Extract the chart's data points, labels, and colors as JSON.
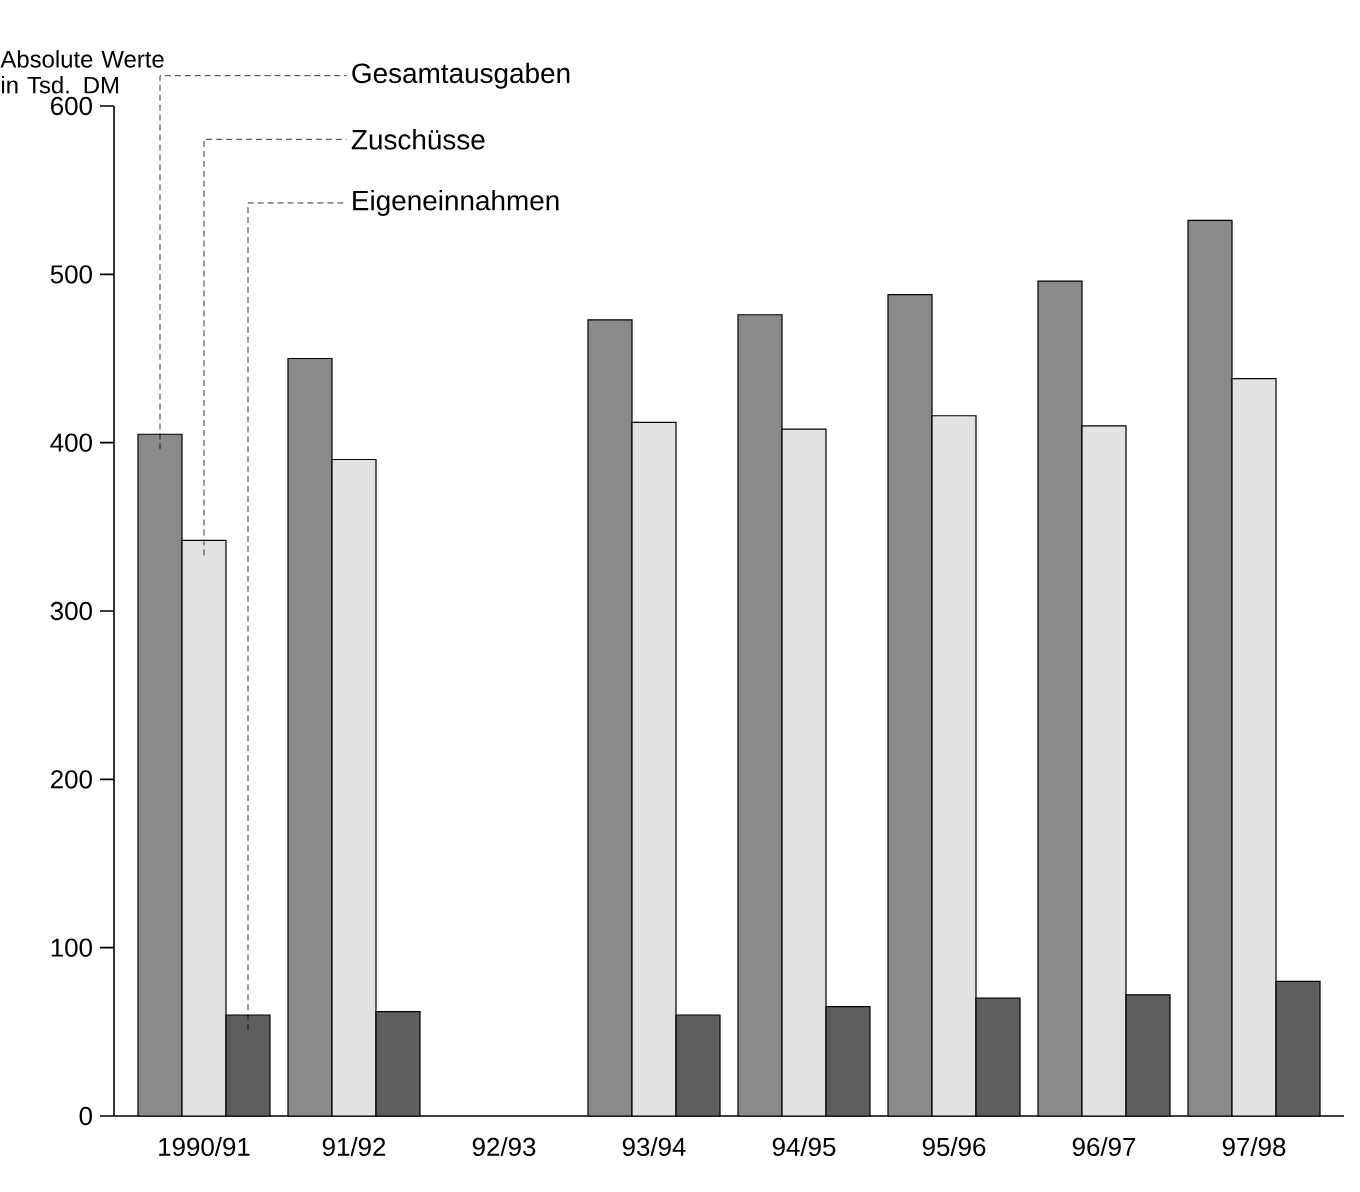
{
  "chart_data": {
    "type": "bar",
    "ylabel": "Absolute Werte in Tsd. DM",
    "categories": [
      "1990/91",
      "91/92",
      "92/93",
      "93/94",
      "94/95",
      "95/96",
      "96/97",
      "97/98"
    ],
    "series": [
      {
        "name": "Gesamtausgaben",
        "color": "#8a8a8a",
        "values": [
          405,
          450,
          null,
          473,
          476,
          488,
          496,
          532
        ]
      },
      {
        "name": "Zuschüsse",
        "color": "#e2e2e2",
        "values": [
          342,
          390,
          null,
          412,
          408,
          416,
          410,
          438
        ]
      },
      {
        "name": "Eigeneinnahmen",
        "color": "#5e5e5e",
        "values": [
          60,
          62,
          null,
          60,
          65,
          70,
          72,
          80
        ]
      }
    ],
    "ylim": [
      0,
      600
    ],
    "yticks": [
      0,
      100,
      200,
      300,
      400,
      500,
      600
    ],
    "grid": false
  }
}
